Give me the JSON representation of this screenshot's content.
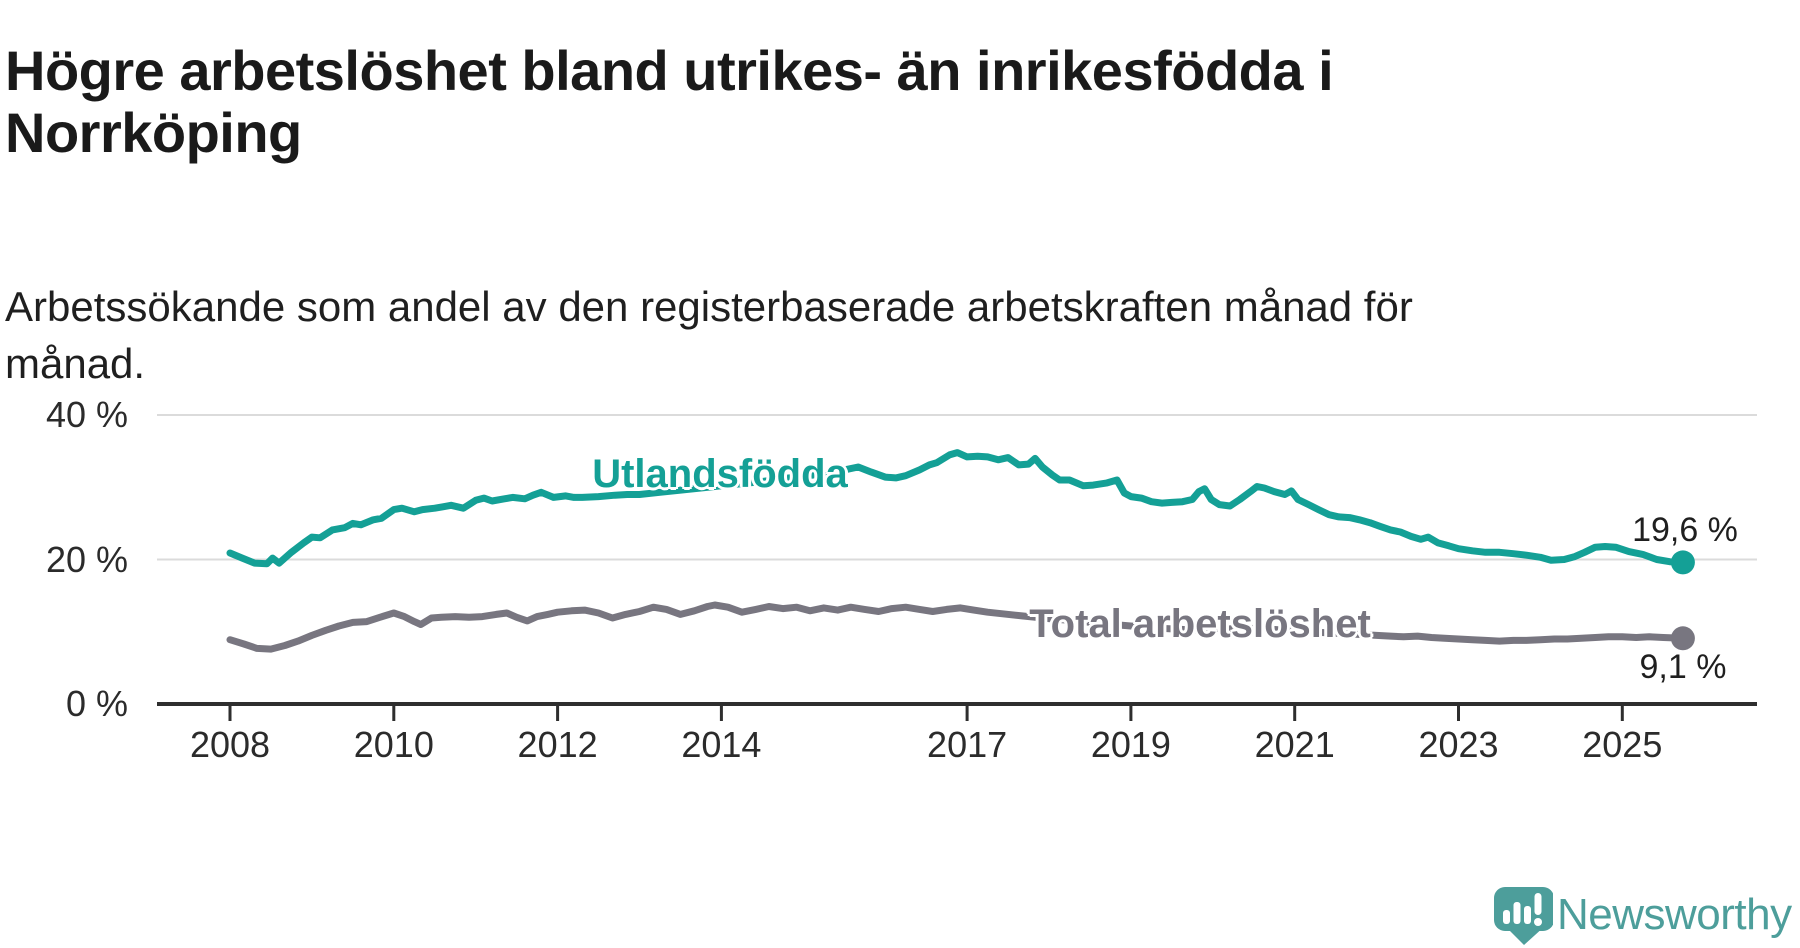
{
  "page": {
    "title": "Högre arbetslöshet bland utrikes- än inrikesfödda i Norrköping",
    "subtitle": "Arbetssökande som andel av den registerbaserade arbetskraften månad för månad."
  },
  "branding": {
    "logo_text": "Newsworthy",
    "logo_icon": "speech-bubble-bar-chart-icon"
  },
  "colors": {
    "teal_series": "#14A096",
    "gray_series": "#787680",
    "grid": "#DBDBDB",
    "axis": "#2E2E2E",
    "axis_text": "#2B2B2B",
    "title_text": "#1A1A1A",
    "value_text": "#1F1F1F",
    "logo_teal": "#4D9E9B"
  },
  "chart_data": {
    "type": "line",
    "unit": "%",
    "grid": "horizontal-only",
    "legend_position": "inline-labels",
    "x_domain": [
      2007.9,
      2026.3
    ],
    "y_domain": [
      0,
      41.5
    ],
    "x_ticks": [
      {
        "year": 2008,
        "label": "2008"
      },
      {
        "year": 2010,
        "label": "2010"
      },
      {
        "year": 2012,
        "label": "2012"
      },
      {
        "year": 2014,
        "label": "2014"
      },
      {
        "year": 2017,
        "label": "2017"
      },
      {
        "year": 2019,
        "label": "2019"
      },
      {
        "year": 2021,
        "label": "2021"
      },
      {
        "year": 2023,
        "label": "2023"
      },
      {
        "year": 2025,
        "label": "2025"
      }
    ],
    "y_ticks": [
      {
        "value": 0,
        "label": "0 %"
      },
      {
        "value": 20,
        "label": "20 %"
      },
      {
        "value": 40,
        "label": "40 %"
      }
    ],
    "series": [
      {
        "name": "Utlandsfödda",
        "slug": "utlandsfodda",
        "color": "#14A096",
        "end_label": "19,6 %",
        "end_value": 19.6,
        "points": [
          [
            2008.0,
            20.9
          ],
          [
            2008.15,
            20.2
          ],
          [
            2008.3,
            19.5
          ],
          [
            2008.45,
            19.4
          ],
          [
            2008.52,
            20.2
          ],
          [
            2008.6,
            19.5
          ],
          [
            2008.75,
            21.0
          ],
          [
            2008.9,
            22.3
          ],
          [
            2009.0,
            23.1
          ],
          [
            2009.1,
            23.0
          ],
          [
            2009.25,
            24.1
          ],
          [
            2009.4,
            24.4
          ],
          [
            2009.5,
            25.0
          ],
          [
            2009.6,
            24.8
          ],
          [
            2009.75,
            25.5
          ],
          [
            2009.85,
            25.7
          ],
          [
            2010.0,
            26.9
          ],
          [
            2010.1,
            27.1
          ],
          [
            2010.25,
            26.6
          ],
          [
            2010.35,
            26.9
          ],
          [
            2010.5,
            27.1
          ],
          [
            2010.6,
            27.3
          ],
          [
            2010.7,
            27.5
          ],
          [
            2010.85,
            27.1
          ],
          [
            2011.0,
            28.2
          ],
          [
            2011.1,
            28.5
          ],
          [
            2011.2,
            28.1
          ],
          [
            2011.35,
            28.4
          ],
          [
            2011.45,
            28.6
          ],
          [
            2011.6,
            28.4
          ],
          [
            2011.7,
            28.9
          ],
          [
            2011.8,
            29.3
          ],
          [
            2011.95,
            28.6
          ],
          [
            2012.1,
            28.8
          ],
          [
            2012.2,
            28.6
          ],
          [
            2012.3,
            28.6
          ],
          [
            2012.5,
            28.7
          ],
          [
            2012.7,
            28.9
          ],
          [
            2012.85,
            29.0
          ],
          [
            2013.0,
            29.0
          ],
          [
            2013.25,
            29.3
          ],
          [
            2013.5,
            29.6
          ],
          [
            2013.75,
            29.9
          ],
          [
            2014.0,
            30.2
          ],
          [
            2014.25,
            30.5
          ],
          [
            2014.5,
            30.8
          ],
          [
            2014.75,
            31.2
          ],
          [
            2015.0,
            31.5
          ],
          [
            2015.25,
            31.9
          ],
          [
            2015.5,
            32.4
          ],
          [
            2015.67,
            32.8
          ],
          [
            2015.83,
            32.1
          ],
          [
            2016.0,
            31.4
          ],
          [
            2016.13,
            31.3
          ],
          [
            2016.25,
            31.6
          ],
          [
            2016.42,
            32.4
          ],
          [
            2016.54,
            33.1
          ],
          [
            2016.63,
            33.4
          ],
          [
            2016.79,
            34.5
          ],
          [
            2016.88,
            34.8
          ],
          [
            2017.0,
            34.2
          ],
          [
            2017.13,
            34.3
          ],
          [
            2017.25,
            34.2
          ],
          [
            2017.38,
            33.8
          ],
          [
            2017.5,
            34.1
          ],
          [
            2017.63,
            33.1
          ],
          [
            2017.75,
            33.2
          ],
          [
            2017.83,
            34.0
          ],
          [
            2017.92,
            32.8
          ],
          [
            2018.04,
            31.7
          ],
          [
            2018.13,
            31.0
          ],
          [
            2018.25,
            31.0
          ],
          [
            2018.42,
            30.2
          ],
          [
            2018.54,
            30.3
          ],
          [
            2018.71,
            30.6
          ],
          [
            2018.83,
            31.0
          ],
          [
            2018.92,
            29.2
          ],
          [
            2019.0,
            28.7
          ],
          [
            2019.13,
            28.5
          ],
          [
            2019.25,
            28.0
          ],
          [
            2019.38,
            27.8
          ],
          [
            2019.5,
            27.9
          ],
          [
            2019.63,
            28.0
          ],
          [
            2019.75,
            28.3
          ],
          [
            2019.83,
            29.4
          ],
          [
            2019.9,
            29.8
          ],
          [
            2019.98,
            28.3
          ],
          [
            2020.08,
            27.6
          ],
          [
            2020.21,
            27.4
          ],
          [
            2020.33,
            28.3
          ],
          [
            2020.46,
            29.4
          ],
          [
            2020.54,
            30.1
          ],
          [
            2020.63,
            29.9
          ],
          [
            2020.75,
            29.4
          ],
          [
            2020.88,
            29.0
          ],
          [
            2020.96,
            29.5
          ],
          [
            2021.04,
            28.3
          ],
          [
            2021.17,
            27.6
          ],
          [
            2021.29,
            26.9
          ],
          [
            2021.42,
            26.2
          ],
          [
            2021.54,
            25.9
          ],
          [
            2021.67,
            25.8
          ],
          [
            2021.79,
            25.5
          ],
          [
            2021.92,
            25.1
          ],
          [
            2022.04,
            24.6
          ],
          [
            2022.17,
            24.1
          ],
          [
            2022.29,
            23.8
          ],
          [
            2022.42,
            23.2
          ],
          [
            2022.54,
            22.8
          ],
          [
            2022.63,
            23.1
          ],
          [
            2022.75,
            22.3
          ],
          [
            2022.88,
            21.9
          ],
          [
            2023.0,
            21.5
          ],
          [
            2023.17,
            21.2
          ],
          [
            2023.33,
            21.0
          ],
          [
            2023.5,
            21.0
          ],
          [
            2023.67,
            20.8
          ],
          [
            2023.83,
            20.6
          ],
          [
            2024.0,
            20.3
          ],
          [
            2024.13,
            19.9
          ],
          [
            2024.29,
            20.0
          ],
          [
            2024.42,
            20.4
          ],
          [
            2024.54,
            21.0
          ],
          [
            2024.67,
            21.7
          ],
          [
            2024.79,
            21.8
          ],
          [
            2024.92,
            21.7
          ],
          [
            2025.08,
            21.1
          ],
          [
            2025.25,
            20.7
          ],
          [
            2025.42,
            20.0
          ],
          [
            2025.58,
            19.7
          ],
          [
            2025.74,
            19.6
          ]
        ]
      },
      {
        "name": "Total arbetslöshet",
        "slug": "total-arbetsloshet",
        "color": "#787680",
        "end_label": "9,1 %",
        "end_value": 9.1,
        "points": [
          [
            2008.0,
            8.9
          ],
          [
            2008.17,
            8.3
          ],
          [
            2008.33,
            7.7
          ],
          [
            2008.5,
            7.6
          ],
          [
            2008.67,
            8.1
          ],
          [
            2008.83,
            8.7
          ],
          [
            2009.0,
            9.5
          ],
          [
            2009.17,
            10.2
          ],
          [
            2009.33,
            10.8
          ],
          [
            2009.5,
            11.3
          ],
          [
            2009.67,
            11.4
          ],
          [
            2009.83,
            12.0
          ],
          [
            2010.0,
            12.6
          ],
          [
            2010.13,
            12.1
          ],
          [
            2010.25,
            11.4
          ],
          [
            2010.33,
            11.0
          ],
          [
            2010.46,
            11.9
          ],
          [
            2010.58,
            12.0
          ],
          [
            2010.75,
            12.1
          ],
          [
            2010.92,
            12.0
          ],
          [
            2011.08,
            12.1
          ],
          [
            2011.25,
            12.4
          ],
          [
            2011.38,
            12.6
          ],
          [
            2011.5,
            12.0
          ],
          [
            2011.63,
            11.5
          ],
          [
            2011.75,
            12.1
          ],
          [
            2011.88,
            12.4
          ],
          [
            2012.0,
            12.7
          ],
          [
            2012.17,
            12.9
          ],
          [
            2012.33,
            13.0
          ],
          [
            2012.5,
            12.6
          ],
          [
            2012.67,
            11.9
          ],
          [
            2012.83,
            12.4
          ],
          [
            2013.0,
            12.8
          ],
          [
            2013.17,
            13.4
          ],
          [
            2013.33,
            13.1
          ],
          [
            2013.5,
            12.4
          ],
          [
            2013.67,
            12.9
          ],
          [
            2013.83,
            13.5
          ],
          [
            2013.92,
            13.7
          ],
          [
            2014.08,
            13.4
          ],
          [
            2014.25,
            12.7
          ],
          [
            2014.42,
            13.1
          ],
          [
            2014.58,
            13.5
          ],
          [
            2014.75,
            13.2
          ],
          [
            2014.92,
            13.4
          ],
          [
            2015.08,
            12.9
          ],
          [
            2015.25,
            13.3
          ],
          [
            2015.42,
            13.0
          ],
          [
            2015.58,
            13.4
          ],
          [
            2015.75,
            13.1
          ],
          [
            2015.92,
            12.8
          ],
          [
            2016.08,
            13.2
          ],
          [
            2016.25,
            13.4
          ],
          [
            2016.42,
            13.1
          ],
          [
            2016.58,
            12.8
          ],
          [
            2016.75,
            13.1
          ],
          [
            2016.92,
            13.3
          ],
          [
            2017.08,
            13.0
          ],
          [
            2017.25,
            12.7
          ],
          [
            2017.42,
            12.5
          ],
          [
            2017.67,
            12.2
          ],
          [
            2018.0,
            11.8
          ],
          [
            2018.33,
            11.5
          ],
          [
            2018.67,
            11.1
          ],
          [
            2019.0,
            10.8
          ],
          [
            2019.33,
            10.5
          ],
          [
            2019.67,
            10.3
          ],
          [
            2020.0,
            10.2
          ],
          [
            2020.33,
            10.5
          ],
          [
            2020.67,
            10.4
          ],
          [
            2021.0,
            10.1
          ],
          [
            2021.33,
            9.9
          ],
          [
            2021.67,
            9.7
          ],
          [
            2022.0,
            9.5
          ],
          [
            2022.17,
            9.4
          ],
          [
            2022.33,
            9.3
          ],
          [
            2022.5,
            9.4
          ],
          [
            2022.67,
            9.2
          ],
          [
            2022.83,
            9.1
          ],
          [
            2023.0,
            9.0
          ],
          [
            2023.17,
            8.9
          ],
          [
            2023.33,
            8.8
          ],
          [
            2023.5,
            8.7
          ],
          [
            2023.67,
            8.8
          ],
          [
            2023.83,
            8.8
          ],
          [
            2024.0,
            8.9
          ],
          [
            2024.17,
            9.0
          ],
          [
            2024.33,
            9.0
          ],
          [
            2024.5,
            9.1
          ],
          [
            2024.67,
            9.2
          ],
          [
            2024.83,
            9.3
          ],
          [
            2025.0,
            9.3
          ],
          [
            2025.17,
            9.2
          ],
          [
            2025.33,
            9.3
          ],
          [
            2025.5,
            9.2
          ],
          [
            2025.74,
            9.1
          ]
        ]
      }
    ]
  }
}
